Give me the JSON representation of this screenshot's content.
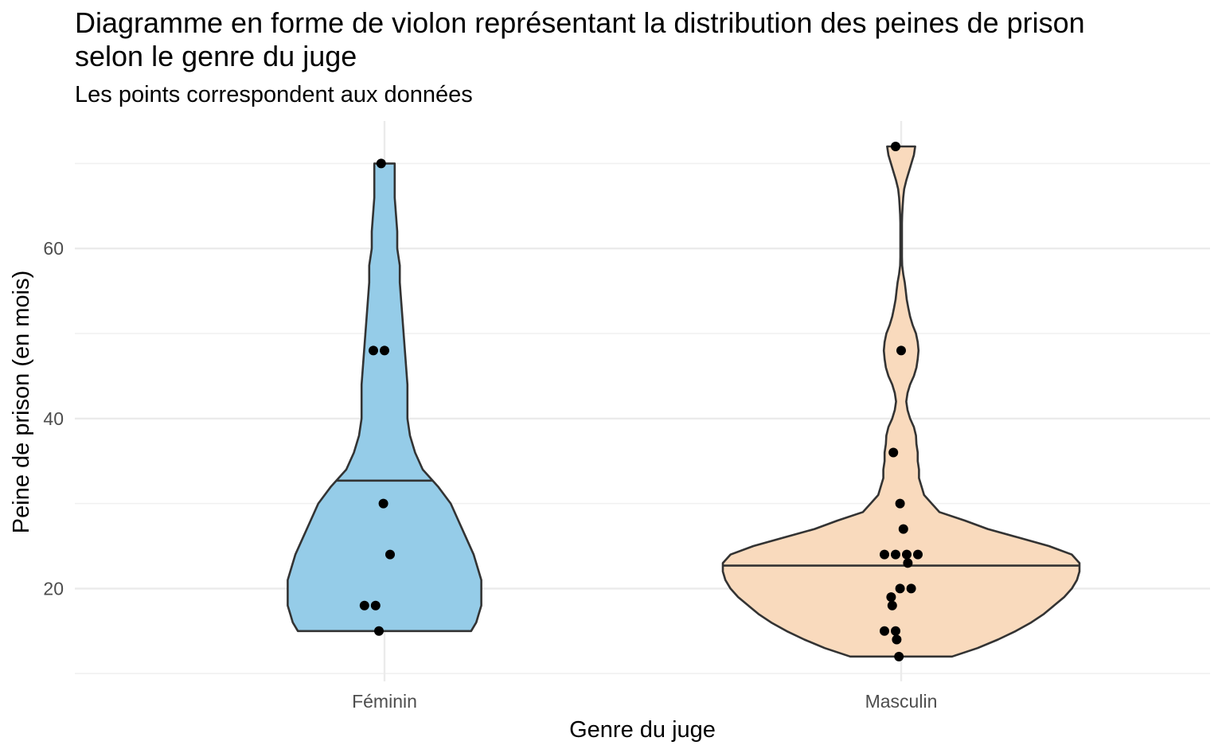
{
  "chart_data": {
    "type": "violin",
    "title": "Diagramme en forme de violon représentant la distribution des peines de prison\n selon le genre du juge",
    "subtitle": "Les points correspondent aux données",
    "xlabel": "Genre du juge",
    "ylabel": "Peine de prison (en mois)",
    "categories": [
      "Féminin",
      "Masculin"
    ],
    "ylim": [
      9,
      74
    ],
    "yticks": [
      20,
      40,
      60
    ],
    "grid": true,
    "legend": "none",
    "series": [
      {
        "category": "Féminin",
        "color": "#95cce8",
        "median_line": 32.7,
        "points": [
          70,
          48,
          48,
          30,
          24,
          18,
          18,
          15
        ],
        "density": [
          [
            15,
            0.34
          ],
          [
            16,
            0.36
          ],
          [
            17,
            0.37
          ],
          [
            18,
            0.38
          ],
          [
            19,
            0.38
          ],
          [
            20,
            0.38
          ],
          [
            21,
            0.38
          ],
          [
            22,
            0.37
          ],
          [
            23,
            0.36
          ],
          [
            24,
            0.35
          ],
          [
            26,
            0.32
          ],
          [
            28,
            0.29
          ],
          [
            30,
            0.26
          ],
          [
            32,
            0.21
          ],
          [
            34,
            0.15
          ],
          [
            36,
            0.12
          ],
          [
            38,
            0.1
          ],
          [
            40,
            0.09
          ],
          [
            44,
            0.09
          ],
          [
            48,
            0.08
          ],
          [
            52,
            0.07
          ],
          [
            56,
            0.06
          ],
          [
            58,
            0.06
          ],
          [
            60,
            0.05
          ],
          [
            62,
            0.05
          ],
          [
            64,
            0.045
          ],
          [
            66,
            0.04
          ],
          [
            68,
            0.04
          ],
          [
            70,
            0.04
          ]
        ]
      },
      {
        "category": "Masculin",
        "color": "#f9dabd",
        "median_line": 22.7,
        "points": [
          72,
          48,
          36,
          30,
          27,
          24,
          24,
          24,
          24,
          23,
          20,
          20,
          19,
          18,
          15,
          15,
          14,
          12
        ],
        "density": [
          [
            12,
            0.2
          ],
          [
            13,
            0.3
          ],
          [
            14,
            0.38
          ],
          [
            15,
            0.45
          ],
          [
            16,
            0.51
          ],
          [
            17,
            0.56
          ],
          [
            18,
            0.6
          ],
          [
            19,
            0.64
          ],
          [
            20,
            0.67
          ],
          [
            21,
            0.69
          ],
          [
            22,
            0.7
          ],
          [
            23,
            0.7
          ],
          [
            24,
            0.67
          ],
          [
            25,
            0.58
          ],
          [
            26,
            0.46
          ],
          [
            27,
            0.34
          ],
          [
            28,
            0.25
          ],
          [
            29,
            0.15
          ],
          [
            30,
            0.12
          ],
          [
            31,
            0.09
          ],
          [
            32,
            0.08
          ],
          [
            33,
            0.07
          ],
          [
            34,
            0.07
          ],
          [
            35,
            0.065
          ],
          [
            36,
            0.065
          ],
          [
            37,
            0.06
          ],
          [
            38,
            0.058
          ],
          [
            39,
            0.05
          ],
          [
            40,
            0.035
          ],
          [
            41,
            0.025
          ],
          [
            42,
            0.02
          ],
          [
            43,
            0.025
          ],
          [
            44,
            0.035
          ],
          [
            45,
            0.05
          ],
          [
            46,
            0.06
          ],
          [
            47,
            0.065
          ],
          [
            48,
            0.068
          ],
          [
            49,
            0.065
          ],
          [
            50,
            0.058
          ],
          [
            51,
            0.045
          ],
          [
            52,
            0.035
          ],
          [
            53,
            0.028
          ],
          [
            54,
            0.022
          ],
          [
            55,
            0.018
          ],
          [
            56,
            0.014
          ],
          [
            57,
            0.008
          ],
          [
            58,
            0.004
          ],
          [
            59,
            0.003
          ],
          [
            60,
            0.003
          ],
          [
            61,
            0.003
          ],
          [
            62,
            0.003
          ],
          [
            63,
            0.003
          ],
          [
            64,
            0.004
          ],
          [
            65,
            0.006
          ],
          [
            66,
            0.008
          ],
          [
            67,
            0.012
          ],
          [
            68,
            0.02
          ],
          [
            69,
            0.03
          ],
          [
            70,
            0.04
          ],
          [
            71,
            0.05
          ],
          [
            72,
            0.055
          ]
        ]
      }
    ]
  }
}
